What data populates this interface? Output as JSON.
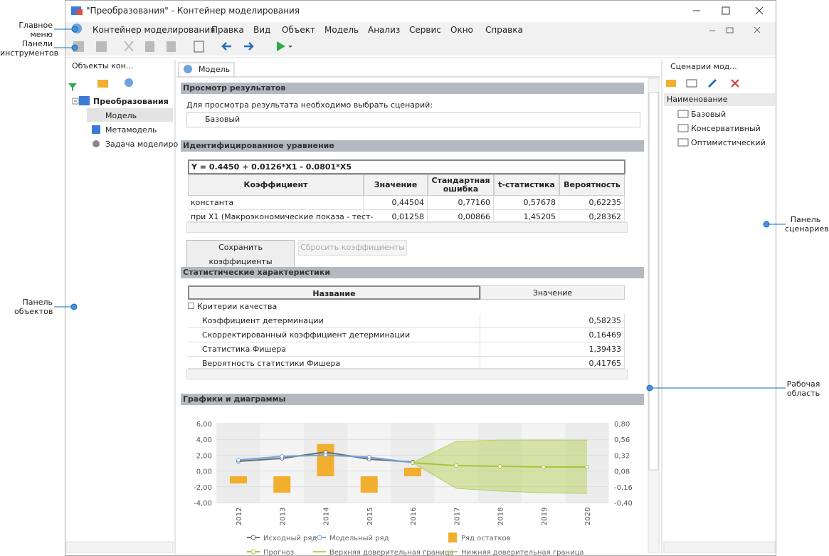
{
  "window": {
    "title": "\"Преобразования\" - Контейнер моделирования",
    "menu": [
      "Контейнер моделирования",
      "Правка",
      "Вид",
      "Объект",
      "Модель",
      "Анализ",
      "Сервис",
      "Окно",
      "Справка"
    ]
  },
  "annotations": {
    "main_menu": "Главное меню",
    "toolbars": "Панели инструментов",
    "objects_panel": "Панель объектов",
    "scenarios_panel": "Панель сценариев",
    "work_area": "Рабочая область"
  },
  "objects_panel": {
    "title": "Объекты кон...",
    "tree": [
      "Преобразования",
      "Модель",
      "Метамодель",
      "Задача моделиро"
    ]
  },
  "scenarios_panel": {
    "title": "Сценарии мод...",
    "column": "Наименование",
    "items": [
      "Базовый",
      "Консервативный",
      "Оптимистический"
    ]
  },
  "workspace": {
    "tab": "Модель",
    "results": {
      "title": "Просмотр результатов",
      "prompt": "Для просмотра результата необходимо выбрать сценарий:",
      "scenario": "Базовый"
    },
    "equation": {
      "title": "Идентифицированное уравнение",
      "formula": "Y = 0.4450 + 0.0126*X1 - 0.0801*X5",
      "table": {
        "header": [
          "Коэффициент",
          "Значение",
          "Стандартная ошибка",
          "t-статистика",
          "Вероятность"
        ],
        "rows": [
          [
            "константа",
            "0,44504",
            "0,77160",
            "0,57678",
            "0,62235"
          ],
          [
            "при X1 (Макроэкономические показа - тест-",
            "0,01258",
            "0,00866",
            "1,45205",
            "0,28362"
          ]
        ]
      },
      "buttons": [
        "Сохранить коэффициенты",
        "Сбросить коэффициенты"
      ]
    },
    "stats": {
      "title": "Статистические характеристики",
      "header": [
        "Название",
        "Значение"
      ],
      "group": "Критерии качества",
      "rows": [
        [
          "Коэффициент детерминации",
          "0,58235"
        ],
        [
          "Скорректированный коэффициент детерминации",
          "0,16469"
        ],
        [
          "Статистика Фишера",
          "1,39433"
        ],
        [
          "Вероятность статистики Фишера",
          "0,41765"
        ]
      ]
    },
    "charts": {
      "title": "Графики и диаграммы",
      "chart_data": {
        "type": "combo",
        "categories": [
          "2012",
          "2013",
          "2014",
          "2015",
          "2016",
          "2017",
          "2018",
          "2019",
          "2020"
        ],
        "ylim": [
          -4,
          6
        ],
        "yticks": [
          {
            "value": 6,
            "label": "6,00"
          },
          {
            "value": 4,
            "label": "4,00"
          },
          {
            "value": 2,
            "label": "2,00"
          },
          {
            "value": 0,
            "label": "0,00"
          },
          {
            "value": -2,
            "label": "-2,00"
          },
          {
            "value": -4,
            "label": "-4,00"
          }
        ],
        "y2lim": [
          -0.4,
          0.8
        ],
        "y2ticks": [
          {
            "value": 0.8,
            "label": "0,80"
          },
          {
            "value": 0.56,
            "label": "0,56"
          },
          {
            "value": 0.32,
            "label": "0,32"
          },
          {
            "value": 0.08,
            "label": "0,08"
          },
          {
            "value": -0.16,
            "label": "-0,16"
          },
          {
            "value": -0.4,
            "label": "-0,40"
          }
        ],
        "grid": true,
        "series": [
          {
            "name": "Исходный ряд",
            "type": "line",
            "color": "#6d6d6d",
            "values": [
              1.22,
              1.6,
              2.4,
              1.5,
              1.13,
              null,
              null,
              null,
              null
            ]
          },
          {
            "name": "Модельный ряд",
            "type": "line",
            "color": "#6fa3dc",
            "values": [
              1.4,
              1.85,
              2.0,
              1.75,
              1.05,
              null,
              null,
              null,
              null
            ]
          },
          {
            "name": "Ряд остатков",
            "type": "bar",
            "axis": "y2",
            "color": "#f2ae2f",
            "values": [
              -0.11,
              -0.25,
              0.49,
              -0.25,
              0.13,
              null,
              null,
              null,
              null
            ]
          },
          {
            "name": "Прогноз",
            "type": "line",
            "color": "#a9c43b",
            "values": [
              null,
              null,
              null,
              null,
              1.05,
              0.68,
              0.6,
              0.5,
              0.5
            ]
          },
          {
            "name": "Верхняя доверительная граница",
            "type": "band",
            "color": "#b8d05c",
            "values": [
              null,
              null,
              null,
              null,
              1.05,
              3.75,
              3.9,
              3.9,
              3.9
            ]
          },
          {
            "name": "Нижняя доверительная граница",
            "type": "band",
            "color": "#b8d05c",
            "values": [
              null,
              null,
              null,
              null,
              1.05,
              -2.2,
              -2.55,
              -2.75,
              -2.85
            ]
          }
        ]
      }
    }
  }
}
